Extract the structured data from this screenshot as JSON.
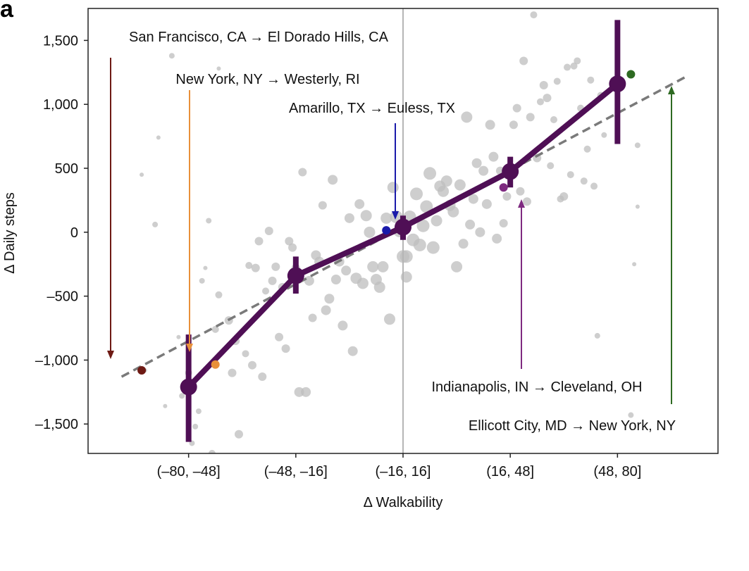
{
  "panel_label": "a",
  "chart_data": {
    "type": "scatter",
    "title": "",
    "xlabel": "Δ Walkability",
    "ylabel": "Δ Daily steps",
    "x_categories": [
      "(–80, –48]",
      "(–48, –16]",
      "(–16, 16]",
      "(16, 48]",
      "(48, 80]"
    ],
    "xlim": [
      -94,
      94
    ],
    "ylim": [
      -1730,
      1750
    ],
    "yticks": [
      {
        "value": 1500,
        "label": "1,500"
      },
      {
        "value": 1000,
        "label": "1,000"
      },
      {
        "value": 500,
        "label": "500"
      },
      {
        "value": 0,
        "label": "0"
      },
      {
        "value": -500,
        "label": "–500"
      },
      {
        "value": -1000,
        "label": "–1,000"
      },
      {
        "value": -1500,
        "label": "–1,500"
      }
    ],
    "vertical_line_x": 0,
    "trend_line": {
      "x": [
        -84,
        84
      ],
      "y": [
        -1130,
        1210
      ],
      "style": "dashed",
      "color": "#7a7a7a"
    },
    "binned_means": {
      "color": "#4f0f55",
      "x": [
        -64,
        -32,
        0,
        32,
        64
      ],
      "y": [
        -1210,
        -340,
        40,
        475,
        1160
      ],
      "err_low": [
        -1640,
        -480,
        -60,
        350,
        690
      ],
      "err_high": [
        -800,
        -190,
        130,
        590,
        1660
      ]
    },
    "scatter_points": [
      {
        "x": -78,
        "y": 450,
        "s": 3
      },
      {
        "x": -77,
        "y": -1080,
        "s": 3
      },
      {
        "x": -74,
        "y": 60,
        "s": 4
      },
      {
        "x": -73,
        "y": 740,
        "s": 3
      },
      {
        "x": -71,
        "y": -1360,
        "s": 3
      },
      {
        "x": -69,
        "y": 1380,
        "s": 4
      },
      {
        "x": -67,
        "y": -820,
        "s": 3
      },
      {
        "x": -66,
        "y": -1280,
        "s": 4
      },
      {
        "x": -64,
        "y": -1100,
        "s": 5
      },
      {
        "x": -63,
        "y": -1650,
        "s": 4
      },
      {
        "x": -62,
        "y": -1520,
        "s": 4
      },
      {
        "x": -61,
        "y": -1400,
        "s": 4
      },
      {
        "x": -60,
        "y": -380,
        "s": 4
      },
      {
        "x": -59,
        "y": -280,
        "s": 3
      },
      {
        "x": -58,
        "y": 90,
        "s": 4
      },
      {
        "x": -57,
        "y": -1730,
        "s": 5
      },
      {
        "x": -56,
        "y": -760,
        "s": 5
      },
      {
        "x": -55,
        "y": -490,
        "s": 5
      },
      {
        "x": -55,
        "y": 1280,
        "s": 3
      },
      {
        "x": -52,
        "y": -690,
        "s": 6
      },
      {
        "x": -51,
        "y": -1100,
        "s": 6
      },
      {
        "x": -50,
        "y": -850,
        "s": 6
      },
      {
        "x": -49,
        "y": -1580,
        "s": 6
      },
      {
        "x": -47,
        "y": -950,
        "s": 5
      },
      {
        "x": -46,
        "y": -260,
        "s": 5
      },
      {
        "x": -45,
        "y": -1040,
        "s": 6
      },
      {
        "x": -44,
        "y": -280,
        "s": 6
      },
      {
        "x": -43,
        "y": -70,
        "s": 6
      },
      {
        "x": -42,
        "y": -1130,
        "s": 6
      },
      {
        "x": -41,
        "y": -460,
        "s": 5
      },
      {
        "x": -40,
        "y": 10,
        "s": 6
      },
      {
        "x": -39,
        "y": -380,
        "s": 6
      },
      {
        "x": -38,
        "y": -270,
        "s": 6
      },
      {
        "x": -37,
        "y": -820,
        "s": 6
      },
      {
        "x": -36,
        "y": -430,
        "s": 6
      },
      {
        "x": -35,
        "y": -910,
        "s": 6
      },
      {
        "x": -34,
        "y": -70,
        "s": 6
      },
      {
        "x": -33,
        "y": -120,
        "s": 6
      },
      {
        "x": -32,
        "y": -280,
        "s": 6
      },
      {
        "x": -31,
        "y": -1250,
        "s": 7
      },
      {
        "x": -30,
        "y": 470,
        "s": 6
      },
      {
        "x": -29,
        "y": -1250,
        "s": 7
      },
      {
        "x": -28,
        "y": -380,
        "s": 7
      },
      {
        "x": -27,
        "y": -670,
        "s": 6
      },
      {
        "x": -26,
        "y": -180,
        "s": 7
      },
      {
        "x": -25,
        "y": -230,
        "s": 7
      },
      {
        "x": -24,
        "y": 210,
        "s": 6
      },
      {
        "x": -23,
        "y": -610,
        "s": 7
      },
      {
        "x": -22,
        "y": -520,
        "s": 7
      },
      {
        "x": -21,
        "y": 410,
        "s": 7
      },
      {
        "x": -20,
        "y": -370,
        "s": 7
      },
      {
        "x": -19,
        "y": -230,
        "s": 7
      },
      {
        "x": -18,
        "y": -730,
        "s": 7
      },
      {
        "x": -17,
        "y": -300,
        "s": 7
      },
      {
        "x": -16,
        "y": 110,
        "s": 7
      },
      {
        "x": -15,
        "y": -930,
        "s": 7
      },
      {
        "x": -14,
        "y": -360,
        "s": 8
      },
      {
        "x": -13,
        "y": 220,
        "s": 7
      },
      {
        "x": -12,
        "y": -400,
        "s": 8
      },
      {
        "x": -11,
        "y": 130,
        "s": 8
      },
      {
        "x": -10,
        "y": 0,
        "s": 8
      },
      {
        "x": -9,
        "y": -270,
        "s": 8
      },
      {
        "x": -8,
        "y": -370,
        "s": 8
      },
      {
        "x": -7,
        "y": -430,
        "s": 8
      },
      {
        "x": -6,
        "y": -270,
        "s": 8
      },
      {
        "x": -5,
        "y": 110,
        "s": 8
      },
      {
        "x": -4,
        "y": -680,
        "s": 8
      },
      {
        "x": -3,
        "y": 350,
        "s": 8
      },
      {
        "x": -2,
        "y": 120,
        "s": 9
      },
      {
        "x": -1,
        "y": 10,
        "s": 9
      },
      {
        "x": 0,
        "y": -190,
        "s": 9
      },
      {
        "x": 1,
        "y": -350,
        "s": 8
      },
      {
        "x": 1,
        "y": -190,
        "s": 9
      },
      {
        "x": 2,
        "y": 120,
        "s": 9
      },
      {
        "x": 3,
        "y": -60,
        "s": 9
      },
      {
        "x": 4,
        "y": 300,
        "s": 9
      },
      {
        "x": 5,
        "y": -100,
        "s": 9
      },
      {
        "x": 6,
        "y": 50,
        "s": 9
      },
      {
        "x": 7,
        "y": 200,
        "s": 9
      },
      {
        "x": 8,
        "y": 460,
        "s": 9
      },
      {
        "x": 9,
        "y": -120,
        "s": 9
      },
      {
        "x": 10,
        "y": 90,
        "s": 8
      },
      {
        "x": 11,
        "y": 360,
        "s": 8
      },
      {
        "x": 12,
        "y": 320,
        "s": 8
      },
      {
        "x": 13,
        "y": 400,
        "s": 8
      },
      {
        "x": 14,
        "y": 210,
        "s": 8
      },
      {
        "x": 15,
        "y": 160,
        "s": 8
      },
      {
        "x": 16,
        "y": -270,
        "s": 8
      },
      {
        "x": 17,
        "y": 370,
        "s": 8
      },
      {
        "x": 18,
        "y": -90,
        "s": 7
      },
      {
        "x": 19,
        "y": 900,
        "s": 8
      },
      {
        "x": 20,
        "y": 60,
        "s": 7
      },
      {
        "x": 21,
        "y": 260,
        "s": 7
      },
      {
        "x": 22,
        "y": 540,
        "s": 7
      },
      {
        "x": 23,
        "y": 0,
        "s": 7
      },
      {
        "x": 24,
        "y": 480,
        "s": 7
      },
      {
        "x": 25,
        "y": 220,
        "s": 7
      },
      {
        "x": 26,
        "y": 840,
        "s": 7
      },
      {
        "x": 27,
        "y": 590,
        "s": 7
      },
      {
        "x": 28,
        "y": -50,
        "s": 7
      },
      {
        "x": 29,
        "y": 480,
        "s": 6
      },
      {
        "x": 30,
        "y": 70,
        "s": 6
      },
      {
        "x": 31,
        "y": 280,
        "s": 6
      },
      {
        "x": 32,
        "y": 490,
        "s": 6
      },
      {
        "x": 33,
        "y": 840,
        "s": 6
      },
      {
        "x": 34,
        "y": 970,
        "s": 6
      },
      {
        "x": 35,
        "y": 320,
        "s": 6
      },
      {
        "x": 36,
        "y": 1340,
        "s": 6
      },
      {
        "x": 37,
        "y": 240,
        "s": 6
      },
      {
        "x": 38,
        "y": 900,
        "s": 6
      },
      {
        "x": 39,
        "y": 1700,
        "s": 5
      },
      {
        "x": 40,
        "y": 580,
        "s": 6
      },
      {
        "x": 41,
        "y": 1020,
        "s": 5
      },
      {
        "x": 42,
        "y": 1150,
        "s": 6
      },
      {
        "x": 43,
        "y": 1050,
        "s": 6
      },
      {
        "x": 44,
        "y": 520,
        "s": 5
      },
      {
        "x": 45,
        "y": 880,
        "s": 5
      },
      {
        "x": 46,
        "y": 1180,
        "s": 5
      },
      {
        "x": 47,
        "y": 260,
        "s": 5
      },
      {
        "x": 48,
        "y": 280,
        "s": 6
      },
      {
        "x": 49,
        "y": 1290,
        "s": 5
      },
      {
        "x": 50,
        "y": 450,
        "s": 5
      },
      {
        "x": 51,
        "y": 1300,
        "s": 5
      },
      {
        "x": 52,
        "y": 1340,
        "s": 5
      },
      {
        "x": 53,
        "y": 970,
        "s": 5
      },
      {
        "x": 54,
        "y": 400,
        "s": 5
      },
      {
        "x": 55,
        "y": 650,
        "s": 5
      },
      {
        "x": 56,
        "y": 1190,
        "s": 5
      },
      {
        "x": 57,
        "y": 360,
        "s": 5
      },
      {
        "x": 58,
        "y": -810,
        "s": 4
      },
      {
        "x": 59,
        "y": 1070,
        "s": 5
      },
      {
        "x": 60,
        "y": 760,
        "s": 4
      },
      {
        "x": 68,
        "y": -1430,
        "s": 4
      },
      {
        "x": 69,
        "y": -250,
        "s": 3
      },
      {
        "x": 70,
        "y": 200,
        "s": 3
      },
      {
        "x": 70,
        "y": 680,
        "s": 4
      }
    ],
    "highlighted_moves": [
      {
        "label": "San Francisco, CA → El Dorado Hills, CA",
        "x": -78,
        "y": -1080,
        "color": "#6e1a14"
      },
      {
        "label": "New York, NY → Westerly, RI",
        "x": -56,
        "y": -1035,
        "color": "#e8903a"
      },
      {
        "label": "Amarillo, TX → Euless, TX",
        "x": -5,
        "y": 15,
        "color": "#1a1aaa"
      },
      {
        "label": "Indianapolis, IN → Cleveland, OH",
        "x": 30,
        "y": 350,
        "color": "#7e2a80"
      },
      {
        "label": "Ellicott City, MD → New York, NY",
        "x": 68,
        "y": 1235,
        "color": "#2e6a22"
      }
    ]
  }
}
